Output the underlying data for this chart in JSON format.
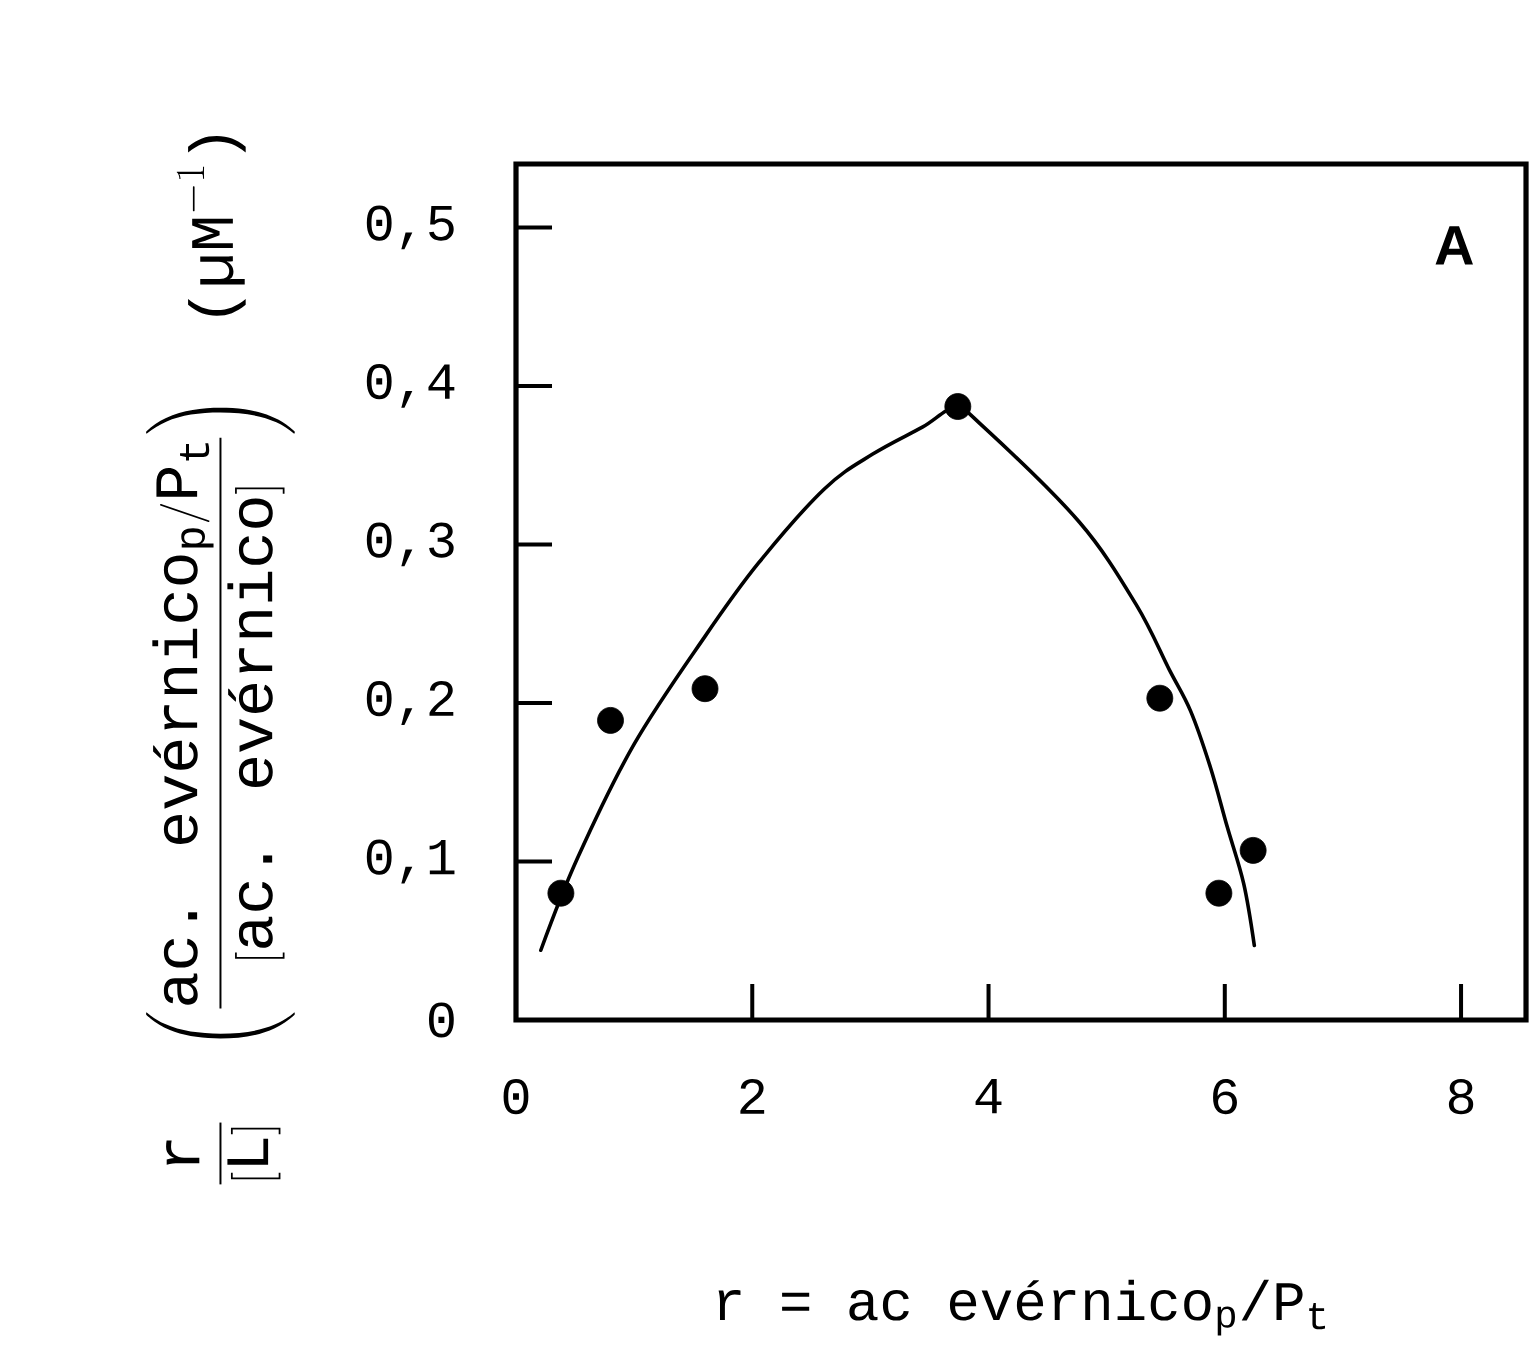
{
  "chart_data": {
    "type": "scatter",
    "xlabel": "r = ac evérnico$_{p}$/P$_{t}$",
    "ylabel": "\\dfrac{\\text{r}}{[\\text{L}]}\\quad\\left(\\dfrac{\\text{ac. evérnico}_{\\text{p}}/\\text{P}_{\\text{t}}}{[\\text{ac. evérnico}]}\\right)\\quad\\text{(µM}^{-1}\\text{)}",
    "annotations": [
      "A"
    ],
    "xlim": [
      0,
      8.55
    ],
    "ylim": [
      0,
      0.54
    ],
    "xticks": [
      0,
      2,
      4,
      6,
      8
    ],
    "yticks": [
      {
        "value": 0,
        "label": "0"
      },
      {
        "value": 0.1,
        "label": "0,1"
      },
      {
        "value": 0.2,
        "label": "0,2"
      },
      {
        "value": 0.3,
        "label": "0,3"
      },
      {
        "value": 0.4,
        "label": "0,4"
      },
      {
        "value": 0.5,
        "label": "0,5"
      }
    ],
    "series": [
      {
        "type": "line",
        "color": "#000000",
        "x": [
          0.21,
          0.52,
          1.0,
          1.6,
          2.05,
          2.61,
          3.02,
          3.44,
          3.72,
          3.96,
          4.77,
          5.25,
          5.53,
          5.71,
          5.88,
          6.02,
          6.16,
          6.25
        ],
        "values": [
          0.044,
          0.102,
          0.174,
          0.242,
          0.288,
          0.335,
          0.357,
          0.374,
          0.386,
          0.374,
          0.314,
          0.262,
          0.221,
          0.195,
          0.159,
          0.122,
          0.086,
          0.047
        ]
      },
      {
        "color": "#000000",
        "marker": "circle",
        "x": [
          0.38,
          0.8,
          1.6,
          3.74,
          5.45,
          5.95,
          6.24
        ],
        "values": [
          0.08,
          0.189,
          0.209,
          0.387,
          0.203,
          0.08,
          0.107
        ]
      }
    ]
  }
}
